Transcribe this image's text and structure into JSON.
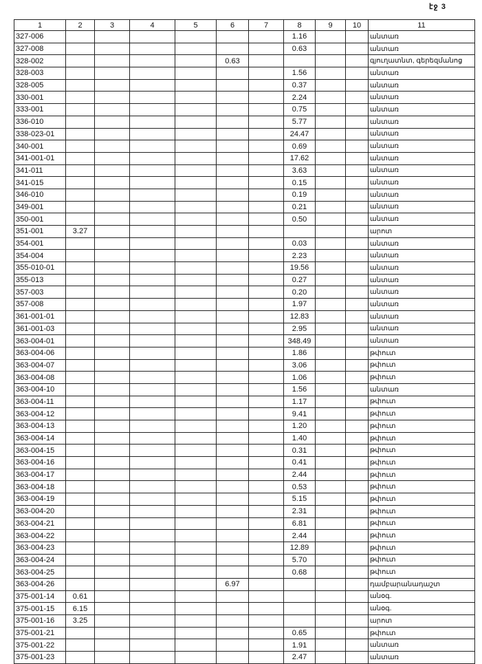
{
  "page_label": "էջ 3",
  "table": {
    "headers": [
      "1",
      "2",
      "3",
      "4",
      "5",
      "6",
      "7",
      "8",
      "9",
      "10",
      "11"
    ],
    "rows": [
      [
        "327-006",
        "",
        "",
        "",
        "",
        "",
        "",
        "1.16",
        "",
        "",
        "անտառ"
      ],
      [
        "327-008",
        "",
        "",
        "",
        "",
        "",
        "",
        "0.63",
        "",
        "",
        "անտառ"
      ],
      [
        "328-002",
        "",
        "",
        "",
        "",
        "0.63",
        "",
        "",
        "",
        "",
        "գյուղատնտ, գերեզմանոց"
      ],
      [
        "328-003",
        "",
        "",
        "",
        "",
        "",
        "",
        "1.56",
        "",
        "",
        "անտառ"
      ],
      [
        "328-005",
        "",
        "",
        "",
        "",
        "",
        "",
        "0.37",
        "",
        "",
        "անտառ"
      ],
      [
        "330-001",
        "",
        "",
        "",
        "",
        "",
        "",
        "2.24",
        "",
        "",
        "անտառ"
      ],
      [
        "333-001",
        "",
        "",
        "",
        "",
        "",
        "",
        "0.75",
        "",
        "",
        "անտառ"
      ],
      [
        "336-010",
        "",
        "",
        "",
        "",
        "",
        "",
        "5.77",
        "",
        "",
        "անտառ"
      ],
      [
        "338-023-01",
        "",
        "",
        "",
        "",
        "",
        "",
        "24.47",
        "",
        "",
        "անտառ"
      ],
      [
        "340-001",
        "",
        "",
        "",
        "",
        "",
        "",
        "0.69",
        "",
        "",
        "անտառ"
      ],
      [
        "341-001-01",
        "",
        "",
        "",
        "",
        "",
        "",
        "17.62",
        "",
        "",
        "անտառ"
      ],
      [
        "341-011",
        "",
        "",
        "",
        "",
        "",
        "",
        "3.63",
        "",
        "",
        "անտառ"
      ],
      [
        "341-015",
        "",
        "",
        "",
        "",
        "",
        "",
        "0.15",
        "",
        "",
        "անտառ"
      ],
      [
        "346-010",
        "",
        "",
        "",
        "",
        "",
        "",
        "0.19",
        "",
        "",
        "անտառ"
      ],
      [
        "349-001",
        "",
        "",
        "",
        "",
        "",
        "",
        "0.21",
        "",
        "",
        "անտառ"
      ],
      [
        "350-001",
        "",
        "",
        "",
        "",
        "",
        "",
        "0.50",
        "",
        "",
        "անտառ"
      ],
      [
        "351-001",
        "3.27",
        "",
        "",
        "",
        "",
        "",
        "",
        "",
        "",
        "արոտ"
      ],
      [
        "354-001",
        "",
        "",
        "",
        "",
        "",
        "",
        "0.03",
        "",
        "",
        "անտառ"
      ],
      [
        "354-004",
        "",
        "",
        "",
        "",
        "",
        "",
        "2.23",
        "",
        "",
        "անտառ"
      ],
      [
        "355-010-01",
        "",
        "",
        "",
        "",
        "",
        "",
        "19.56",
        "",
        "",
        "անտառ"
      ],
      [
        "355-013",
        "",
        "",
        "",
        "",
        "",
        "",
        "0.27",
        "",
        "",
        "անտառ"
      ],
      [
        "357-003",
        "",
        "",
        "",
        "",
        "",
        "",
        "0.20",
        "",
        "",
        "անտառ"
      ],
      [
        "357-008",
        "",
        "",
        "",
        "",
        "",
        "",
        "1.97",
        "",
        "",
        "անտառ"
      ],
      [
        "361-001-01",
        "",
        "",
        "",
        "",
        "",
        "",
        "12.83",
        "",
        "",
        "անտառ"
      ],
      [
        "361-001-03",
        "",
        "",
        "",
        "",
        "",
        "",
        "2.95",
        "",
        "",
        "անտառ"
      ],
      [
        "363-004-01",
        "",
        "",
        "",
        "",
        "",
        "",
        "348.49",
        "",
        "",
        "անտառ"
      ],
      [
        "363-004-06",
        "",
        "",
        "",
        "",
        "",
        "",
        "1.86",
        "",
        "",
        "թփուտ"
      ],
      [
        "363-004-07",
        "",
        "",
        "",
        "",
        "",
        "",
        "3.06",
        "",
        "",
        "թփուտ"
      ],
      [
        "363-004-08",
        "",
        "",
        "",
        "",
        "",
        "",
        "1.06",
        "",
        "",
        "թփուտ"
      ],
      [
        "363-004-10",
        "",
        "",
        "",
        "",
        "",
        "",
        "1.56",
        "",
        "",
        "անտառ"
      ],
      [
        "363-004-11",
        "",
        "",
        "",
        "",
        "",
        "",
        "1.17",
        "",
        "",
        "թփուտ"
      ],
      [
        "363-004-12",
        "",
        "",
        "",
        "",
        "",
        "",
        "9.41",
        "",
        "",
        "թփուտ"
      ],
      [
        "363-004-13",
        "",
        "",
        "",
        "",
        "",
        "",
        "1.20",
        "",
        "",
        "թփուտ"
      ],
      [
        "363-004-14",
        "",
        "",
        "",
        "",
        "",
        "",
        "1.40",
        "",
        "",
        "թփուտ"
      ],
      [
        "363-004-15",
        "",
        "",
        "",
        "",
        "",
        "",
        "0.31",
        "",
        "",
        "թփուտ"
      ],
      [
        "363-004-16",
        "",
        "",
        "",
        "",
        "",
        "",
        "0.41",
        "",
        "",
        "թփուտ"
      ],
      [
        "363-004-17",
        "",
        "",
        "",
        "",
        "",
        "",
        "2.44",
        "",
        "",
        "թփուտ"
      ],
      [
        "363-004-18",
        "",
        "",
        "",
        "",
        "",
        "",
        "0.53",
        "",
        "",
        "թփուտ"
      ],
      [
        "363-004-19",
        "",
        "",
        "",
        "",
        "",
        "",
        "5.15",
        "",
        "",
        "թփուտ"
      ],
      [
        "363-004-20",
        "",
        "",
        "",
        "",
        "",
        "",
        "2.31",
        "",
        "",
        "թփուտ"
      ],
      [
        "363-004-21",
        "",
        "",
        "",
        "",
        "",
        "",
        "6.81",
        "",
        "",
        "թփուտ"
      ],
      [
        "363-004-22",
        "",
        "",
        "",
        "",
        "",
        "",
        "2.44",
        "",
        "",
        "թփուտ"
      ],
      [
        "363-004-23",
        "",
        "",
        "",
        "",
        "",
        "",
        "12.89",
        "",
        "",
        "թփուտ"
      ],
      [
        "363-004-24",
        "",
        "",
        "",
        "",
        "",
        "",
        "5.70",
        "",
        "",
        "թփուտ"
      ],
      [
        "363-004-25",
        "",
        "",
        "",
        "",
        "",
        "",
        "0.68",
        "",
        "",
        "թփուտ"
      ],
      [
        "363-004-26",
        "",
        "",
        "",
        "",
        "6.97",
        "",
        "",
        "",
        "",
        "դամբարանադաշտ"
      ],
      [
        "375-001-14",
        "0.61",
        "",
        "",
        "",
        "",
        "",
        "",
        "",
        "",
        "անօգ."
      ],
      [
        "375-001-15",
        "6.15",
        "",
        "",
        "",
        "",
        "",
        "",
        "",
        "",
        "անօգ."
      ],
      [
        "375-001-16",
        "3.25",
        "",
        "",
        "",
        "",
        "",
        "",
        "",
        "",
        "արոտ"
      ],
      [
        "375-001-21",
        "",
        "",
        "",
        "",
        "",
        "",
        "0.65",
        "",
        "",
        "թփուտ"
      ],
      [
        "375-001-22",
        "",
        "",
        "",
        "",
        "",
        "",
        "1.91",
        "",
        "",
        "անտառ"
      ],
      [
        "375-001-23",
        "",
        "",
        "",
        "",
        "",
        "",
        "2.47",
        "",
        "",
        "անտառ"
      ]
    ]
  }
}
